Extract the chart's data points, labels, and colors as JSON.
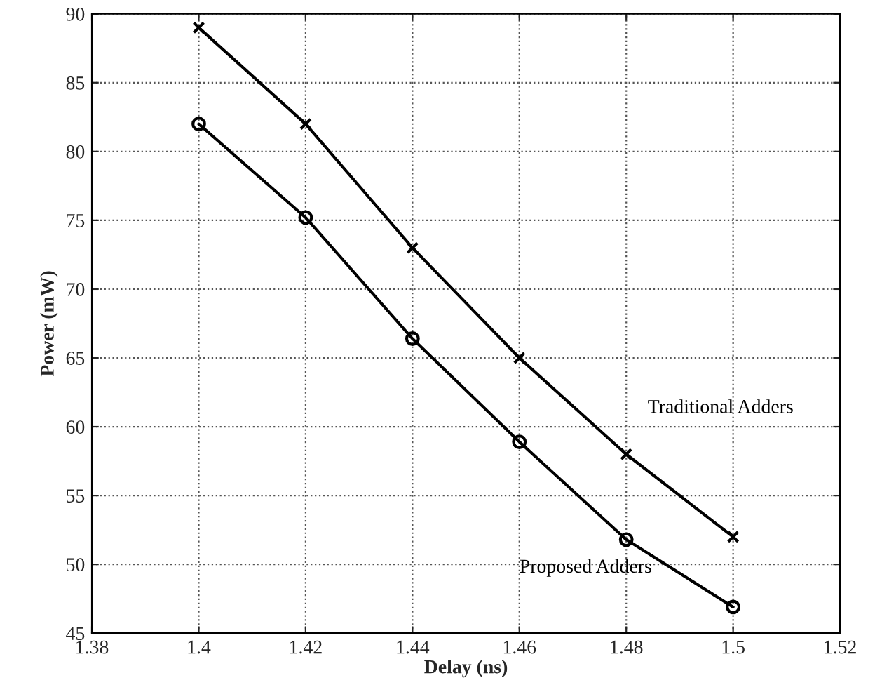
{
  "chart_data": {
    "type": "line",
    "xlabel": "Delay (ns)",
    "ylabel": "Power (mW)",
    "x": [
      1.4,
      1.42,
      1.44,
      1.46,
      1.48,
      1.5
    ],
    "series": [
      {
        "name": "Traditional Adders",
        "color": "#000000",
        "marker": "cross",
        "values": [
          89,
          82,
          73,
          65,
          58,
          52
        ]
      },
      {
        "name": "Proposed Adders",
        "color": "#000000",
        "marker": "circle",
        "values": [
          82,
          75.2,
          66.4,
          58.9,
          51.8,
          46.9
        ]
      }
    ],
    "xlim": [
      1.38,
      1.52
    ],
    "xticks": [
      1.38,
      1.4,
      1.42,
      1.44,
      1.46,
      1.48,
      1.5,
      1.52
    ],
    "ylim": [
      45,
      90
    ],
    "yticks": [
      45,
      50,
      55,
      60,
      65,
      70,
      75,
      80,
      85,
      90
    ],
    "grid": true,
    "line_style": "solid",
    "legend": false
  }
}
